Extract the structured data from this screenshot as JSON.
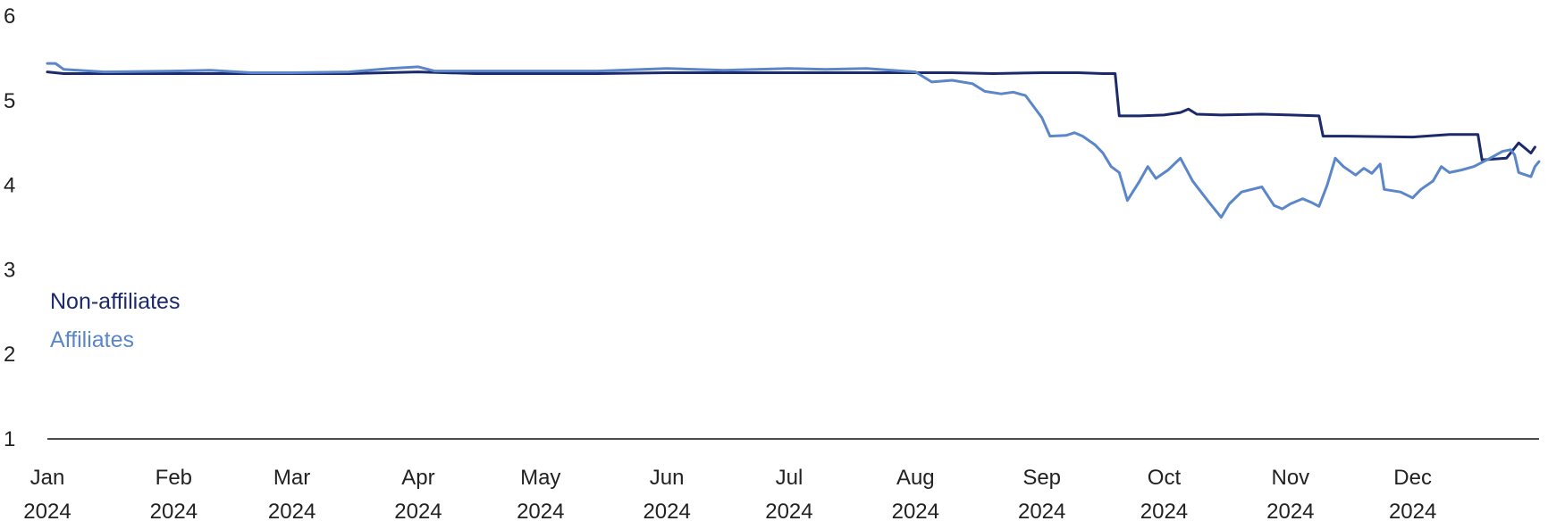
{
  "chart_data": {
    "type": "line",
    "ylim": [
      1,
      6
    ],
    "yticks": [
      1,
      2,
      3,
      4,
      5,
      6
    ],
    "xlim": [
      "2024-01-01",
      "2025-01-01"
    ],
    "xticks": [
      {
        "date": "2024-01-01",
        "month": "Jan",
        "year": "2024"
      },
      {
        "date": "2024-02-01",
        "month": "Feb",
        "year": "2024"
      },
      {
        "date": "2024-03-01",
        "month": "Mar",
        "year": "2024"
      },
      {
        "date": "2024-04-01",
        "month": "Apr",
        "year": "2024"
      },
      {
        "date": "2024-05-01",
        "month": "May",
        "year": "2024"
      },
      {
        "date": "2024-06-01",
        "month": "Jun",
        "year": "2024"
      },
      {
        "date": "2024-07-01",
        "month": "Jul",
        "year": "2024"
      },
      {
        "date": "2024-08-01",
        "month": "Aug",
        "year": "2024"
      },
      {
        "date": "2024-09-01",
        "month": "Sep",
        "year": "2024"
      },
      {
        "date": "2024-10-01",
        "month": "Oct",
        "year": "2024"
      },
      {
        "date": "2024-11-01",
        "month": "Nov",
        "year": "2024"
      },
      {
        "date": "2024-12-01",
        "month": "Dec",
        "year": "2024"
      }
    ],
    "legend_placement": "left",
    "grid": false,
    "series": [
      {
        "name": "Non-affiliates",
        "color": "#1c2a6b",
        "points": [
          [
            "2024-01-01",
            5.34
          ],
          [
            "2024-01-05",
            5.32
          ],
          [
            "2024-01-15",
            5.32
          ],
          [
            "2024-02-01",
            5.32
          ],
          [
            "2024-02-15",
            5.32
          ],
          [
            "2024-03-01",
            5.32
          ],
          [
            "2024-03-15",
            5.32
          ],
          [
            "2024-04-01",
            5.34
          ],
          [
            "2024-04-15",
            5.32
          ],
          [
            "2024-05-01",
            5.32
          ],
          [
            "2024-05-15",
            5.32
          ],
          [
            "2024-06-01",
            5.33
          ],
          [
            "2024-06-15",
            5.33
          ],
          [
            "2024-07-01",
            5.33
          ],
          [
            "2024-07-15",
            5.33
          ],
          [
            "2024-08-01",
            5.33
          ],
          [
            "2024-08-10",
            5.33
          ],
          [
            "2024-08-20",
            5.32
          ],
          [
            "2024-09-01",
            5.33
          ],
          [
            "2024-09-10",
            5.33
          ],
          [
            "2024-09-16",
            5.32
          ],
          [
            "2024-09-19",
            5.32
          ],
          [
            "2024-09-20",
            4.82
          ],
          [
            "2024-09-25",
            4.82
          ],
          [
            "2024-10-01",
            4.83
          ],
          [
            "2024-10-05",
            4.86
          ],
          [
            "2024-10-07",
            4.9
          ],
          [
            "2024-10-09",
            4.84
          ],
          [
            "2024-10-15",
            4.83
          ],
          [
            "2024-10-25",
            4.84
          ],
          [
            "2024-11-01",
            4.83
          ],
          [
            "2024-11-08",
            4.82
          ],
          [
            "2024-11-09",
            4.58
          ],
          [
            "2024-11-15",
            4.58
          ],
          [
            "2024-12-01",
            4.57
          ],
          [
            "2024-12-10",
            4.6
          ],
          [
            "2024-12-17",
            4.6
          ],
          [
            "2024-12-18",
            4.3
          ],
          [
            "2024-12-24",
            4.32
          ],
          [
            "2024-12-27",
            4.5
          ],
          [
            "2024-12-30",
            4.38
          ],
          [
            "2024-12-31",
            4.45
          ]
        ]
      },
      {
        "name": "Affiliates",
        "color": "#5b86c9",
        "points": [
          [
            "2024-01-01",
            5.44
          ],
          [
            "2024-01-03",
            5.44
          ],
          [
            "2024-01-05",
            5.37
          ],
          [
            "2024-01-15",
            5.34
          ],
          [
            "2024-02-01",
            5.35
          ],
          [
            "2024-02-10",
            5.36
          ],
          [
            "2024-02-20",
            5.33
          ],
          [
            "2024-03-01",
            5.33
          ],
          [
            "2024-03-15",
            5.34
          ],
          [
            "2024-03-25",
            5.38
          ],
          [
            "2024-04-01",
            5.4
          ],
          [
            "2024-04-05",
            5.35
          ],
          [
            "2024-04-15",
            5.35
          ],
          [
            "2024-05-01",
            5.35
          ],
          [
            "2024-05-15",
            5.35
          ],
          [
            "2024-06-01",
            5.38
          ],
          [
            "2024-06-15",
            5.36
          ],
          [
            "2024-07-01",
            5.38
          ],
          [
            "2024-07-10",
            5.37
          ],
          [
            "2024-07-20",
            5.38
          ],
          [
            "2024-08-01",
            5.34
          ],
          [
            "2024-08-05",
            5.22
          ],
          [
            "2024-08-10",
            5.24
          ],
          [
            "2024-08-15",
            5.2
          ],
          [
            "2024-08-18",
            5.11
          ],
          [
            "2024-08-22",
            5.08
          ],
          [
            "2024-08-25",
            5.1
          ],
          [
            "2024-08-28",
            5.06
          ],
          [
            "2024-09-01",
            4.8
          ],
          [
            "2024-09-03",
            4.58
          ],
          [
            "2024-09-07",
            4.59
          ],
          [
            "2024-09-09",
            4.62
          ],
          [
            "2024-09-11",
            4.58
          ],
          [
            "2024-09-14",
            4.48
          ],
          [
            "2024-09-16",
            4.38
          ],
          [
            "2024-09-18",
            4.22
          ],
          [
            "2024-09-20",
            4.15
          ],
          [
            "2024-09-22",
            3.82
          ],
          [
            "2024-09-25",
            4.05
          ],
          [
            "2024-09-27",
            4.22
          ],
          [
            "2024-09-29",
            4.08
          ],
          [
            "2024-10-02",
            4.18
          ],
          [
            "2024-10-05",
            4.32
          ],
          [
            "2024-10-08",
            4.05
          ],
          [
            "2024-10-12",
            3.8
          ],
          [
            "2024-10-15",
            3.62
          ],
          [
            "2024-10-17",
            3.78
          ],
          [
            "2024-10-20",
            3.92
          ],
          [
            "2024-10-25",
            3.98
          ],
          [
            "2024-10-28",
            3.76
          ],
          [
            "2024-10-30",
            3.72
          ],
          [
            "2024-11-01",
            3.78
          ],
          [
            "2024-11-04",
            3.84
          ],
          [
            "2024-11-06",
            3.8
          ],
          [
            "2024-11-08",
            3.75
          ],
          [
            "2024-11-10",
            4.0
          ],
          [
            "2024-11-12",
            4.32
          ],
          [
            "2024-11-14",
            4.22
          ],
          [
            "2024-11-17",
            4.12
          ],
          [
            "2024-11-19",
            4.2
          ],
          [
            "2024-11-21",
            4.14
          ],
          [
            "2024-11-23",
            4.25
          ],
          [
            "2024-11-24",
            3.95
          ],
          [
            "2024-11-28",
            3.92
          ],
          [
            "2024-12-01",
            3.85
          ],
          [
            "2024-12-03",
            3.95
          ],
          [
            "2024-12-06",
            4.05
          ],
          [
            "2024-12-08",
            4.22
          ],
          [
            "2024-12-10",
            4.15
          ],
          [
            "2024-12-13",
            4.18
          ],
          [
            "2024-12-16",
            4.22
          ],
          [
            "2024-12-20",
            4.32
          ],
          [
            "2024-12-23",
            4.4
          ],
          [
            "2024-12-25",
            4.42
          ],
          [
            "2024-12-26",
            4.36
          ],
          [
            "2024-12-27",
            4.15
          ],
          [
            "2024-12-30",
            4.1
          ],
          [
            "2024-12-31",
            4.22
          ],
          [
            "2025-01-01",
            4.28
          ]
        ]
      }
    ]
  }
}
